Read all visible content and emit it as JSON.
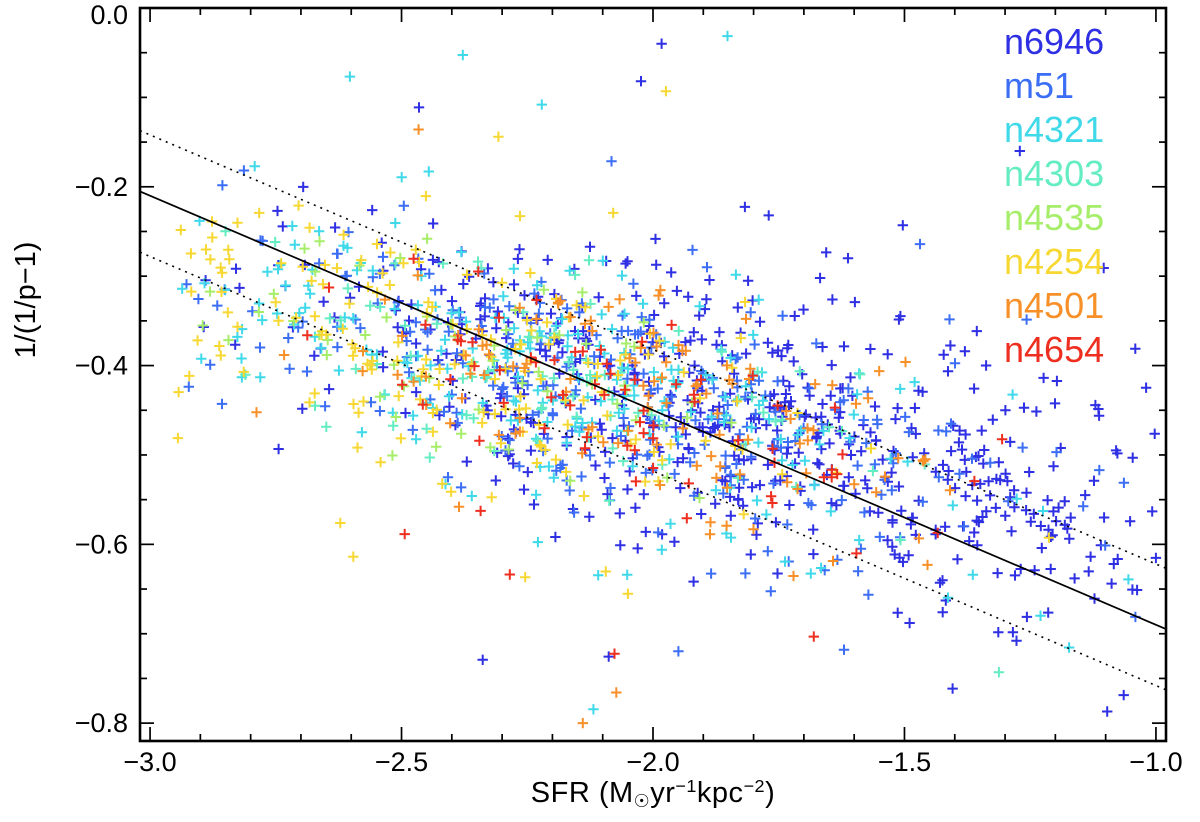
{
  "figure": {
    "background": "#ffffff",
    "frame_color": "#000000",
    "text_color": "#000000"
  },
  "chart_data": {
    "type": "scatter",
    "title": "",
    "xlabel": "SFR (M☉yr⁻¹kpc⁻²)",
    "xlabel_parts": {
      "pre": "SFR (M",
      "sun": "☉",
      "mid1": "yr",
      "sup1": "−1",
      "mid2": "kpc",
      "sup2": "−2",
      "end": ")"
    },
    "ylabel": "1/(1/p−1)",
    "xlim": [
      -3.02,
      -0.98
    ],
    "ylim": [
      -0.82,
      0.0
    ],
    "xticks": [
      -3.0,
      -2.5,
      -2.0,
      -1.5,
      -1.0
    ],
    "xtick_labels": [
      "−3.0",
      "−2.5",
      "−2.0",
      "−1.5",
      "−1.0"
    ],
    "yticks": [
      0.0,
      -0.2,
      -0.4,
      -0.6,
      -0.8
    ],
    "ytick_labels": [
      "0.0",
      "−0.2",
      "−0.4",
      "−0.6",
      "−0.8"
    ],
    "x_minor_step": 0.1,
    "y_minor_step": 0.05,
    "grid": false,
    "marker": "plus",
    "fit_line": {
      "style": "solid",
      "color": "#000000",
      "slope": -0.24,
      "intercept": -0.93,
      "x_start": -3.02,
      "x_end": -0.98
    },
    "confidence_band": {
      "style": "dotted",
      "color": "#000000",
      "offset": 0.068
    },
    "scatter_trend": {
      "slope": -0.14,
      "intercept": -0.72
    },
    "legend": {
      "position": "top-right",
      "items": [
        {
          "label": "n6946",
          "color": "#2f2fe3"
        },
        {
          "label": "m51",
          "color": "#3b6ef5"
        },
        {
          "label": "n4321",
          "color": "#3fd9e9"
        },
        {
          "label": "n4303",
          "color": "#64ecc2"
        },
        {
          "label": "n4535",
          "color": "#a6ed6a"
        },
        {
          "label": "n4254",
          "color": "#f7d832"
        },
        {
          "label": "n4501",
          "color": "#f79028"
        },
        {
          "label": "n4654",
          "color": "#ee2e1f"
        }
      ]
    },
    "series": [
      {
        "name": "n6946",
        "color": "#2f2fe3",
        "n": 560,
        "x_mean": -1.82,
        "x_sd": 0.46,
        "x_range": [
          -2.95,
          -1.0
        ],
        "y_sigma": 0.072,
        "outlier_frac": 0.03,
        "seed": 11
      },
      {
        "name": "m51",
        "color": "#3b6ef5",
        "n": 300,
        "x_mean": -2.05,
        "x_sd": 0.44,
        "x_range": [
          -2.95,
          -1.0
        ],
        "y_sigma": 0.07,
        "outlier_frac": 0.03,
        "seed": 22
      },
      {
        "name": "n4321",
        "color": "#3fd9e9",
        "n": 230,
        "x_mean": -2.2,
        "x_sd": 0.4,
        "x_range": [
          -2.95,
          -1.02
        ],
        "y_sigma": 0.07,
        "outlier_frac": 0.05,
        "seed": 33
      },
      {
        "name": "n4303",
        "color": "#64ecc2",
        "n": 85,
        "x_mean": -2.2,
        "x_sd": 0.36,
        "x_range": [
          -2.9,
          -1.1
        ],
        "y_sigma": 0.065,
        "outlier_frac": 0.04,
        "seed": 44
      },
      {
        "name": "n4535",
        "color": "#a6ed6a",
        "n": 60,
        "x_mean": -2.4,
        "x_sd": 0.3,
        "x_range": [
          -2.9,
          -1.3
        ],
        "y_sigma": 0.065,
        "outlier_frac": 0.04,
        "seed": 55
      },
      {
        "name": "n4254",
        "color": "#f7d832",
        "n": 175,
        "x_mean": -2.45,
        "x_sd": 0.36,
        "x_range": [
          -2.95,
          -1.15
        ],
        "y_sigma": 0.068,
        "outlier_frac": 0.05,
        "seed": 66
      },
      {
        "name": "n4501",
        "color": "#f79028",
        "n": 120,
        "x_mean": -2.0,
        "x_sd": 0.32,
        "x_range": [
          -2.8,
          -1.2
        ],
        "y_sigma": 0.06,
        "outlier_frac": 0.04,
        "seed": 77
      },
      {
        "name": "n4654",
        "color": "#ee2e1f",
        "n": 75,
        "x_mean": -2.05,
        "x_sd": 0.35,
        "x_range": [
          -2.75,
          -1.25
        ],
        "y_sigma": 0.06,
        "outlier_frac": 0.04,
        "seed": 88
      }
    ]
  }
}
